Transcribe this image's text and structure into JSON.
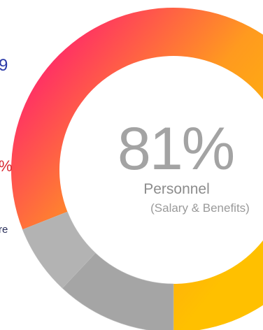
{
  "chart_data": {
    "type": "pie",
    "variant": "donut",
    "categories": [
      "Personnel",
      "",
      ""
    ],
    "values": [
      81,
      12,
      7
    ],
    "colors": [
      "#ff8a00",
      "#a5a5a5",
      "#b3b3b3"
    ],
    "gradient": [
      "#ff1a73",
      "#ff9a1f",
      "#ffc000"
    ],
    "center": {
      "value": "81%",
      "label": "Personnel",
      "sub": "(Salary & Benefits)"
    }
  },
  "edge_texts": [
    "9",
    "%",
    "re"
  ]
}
